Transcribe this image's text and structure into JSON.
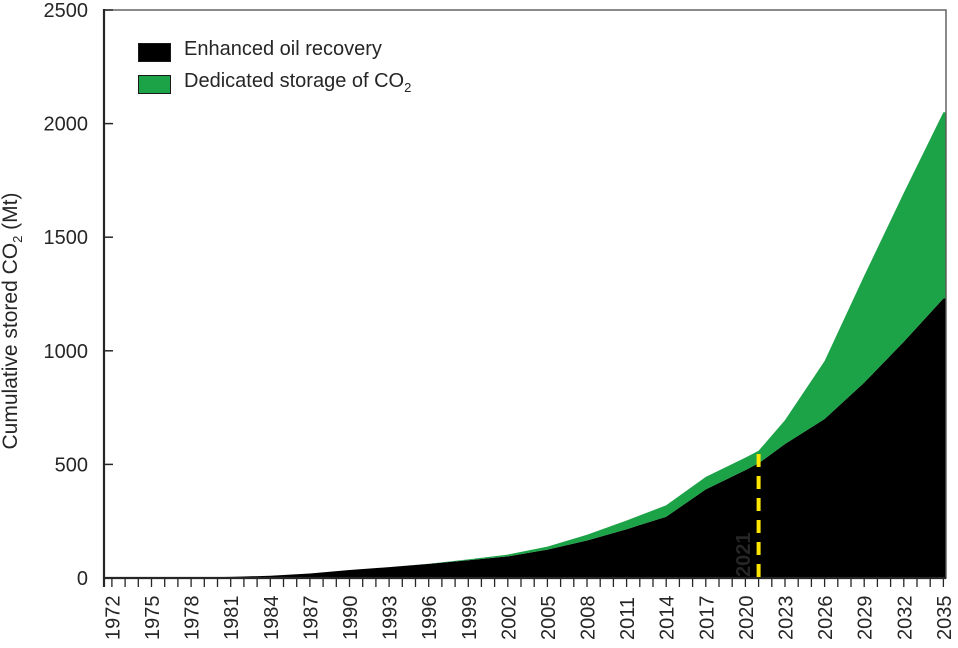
{
  "figure": {
    "background": "#ffffff",
    "text_color": "#262626",
    "axis_color": "#262626",
    "border_color": "#595959"
  },
  "legend": {
    "items": [
      {
        "label": "Enhanced oil recovery",
        "subscript": "",
        "color": "#000000"
      },
      {
        "label": "Dedicated storage of CO",
        "subscript": "2",
        "color": "#1CA347"
      }
    ]
  },
  "chart_data": {
    "type": "area",
    "stacked": true,
    "title": "",
    "ylabel": "Cumulative stored CO2 (Mt)",
    "ylabel_prefix": "Cumulative stored CO",
    "ylabel_sub": "2",
    "ylabel_suffix": " (Mt)",
    "xlabel": "",
    "grid": false,
    "legend_position": "top-left-inside",
    "xlim": [
      1971.4,
      2035.2
    ],
    "ylim": [
      0,
      2500
    ],
    "y_ticks": [
      0,
      500,
      1000,
      1500,
      2000,
      2500
    ],
    "x_tick_years_labeled": [
      1972,
      1975,
      1978,
      1981,
      1984,
      1987,
      1990,
      1993,
      1996,
      1999,
      2002,
      2005,
      2008,
      2011,
      2014,
      2017,
      2020,
      2023,
      2026,
      2029,
      2032,
      2035
    ],
    "x_minor_tick_step": 1,
    "x": [
      1972,
      1975,
      1978,
      1981,
      1984,
      1987,
      1990,
      1993,
      1996,
      1999,
      2002,
      2005,
      2008,
      2011,
      2014,
      2017,
      2020,
      2021,
      2023,
      2026,
      2029,
      2032,
      2035
    ],
    "series": [
      {
        "name": "Enhanced oil recovery",
        "color": "#000000",
        "values": [
          0,
          1,
          2,
          5,
          10,
          20,
          35,
          48,
          62,
          78,
          95,
          125,
          165,
          215,
          270,
          390,
          475,
          505,
          590,
          700,
          860,
          1040,
          1230
        ]
      },
      {
        "name": "Dedicated storage of CO2",
        "color": "#1CA347",
        "values": [
          0,
          0,
          0,
          0,
          0,
          0,
          0,
          0,
          1,
          4,
          8,
          13,
          25,
          38,
          50,
          55,
          55,
          55,
          105,
          255,
          470,
          655,
          820
        ]
      }
    ],
    "annotation": {
      "label": "2021",
      "x": 2021,
      "y_value": 560,
      "color": "#FFE600"
    }
  }
}
